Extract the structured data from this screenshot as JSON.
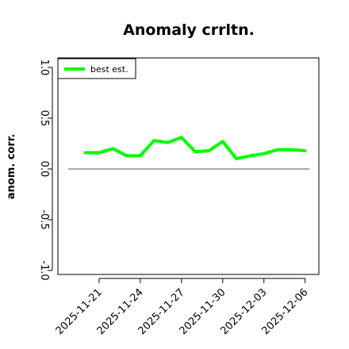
{
  "chart_data": {
    "type": "line",
    "title": "Anomaly crrltn.",
    "ylabel": "anom. corr.",
    "xlabel": "",
    "ylim": [
      -1.0,
      1.0
    ],
    "yticks": [
      -1.0,
      -0.5,
      0.0,
      0.5,
      1.0
    ],
    "ytick_labels": [
      "-1.0",
      "-0.5",
      "0.0",
      "0.5",
      "1.0"
    ],
    "x": [
      "2025-11-20",
      "2025-11-21",
      "2025-11-22",
      "2025-11-23",
      "2025-11-24",
      "2025-11-25",
      "2025-11-26",
      "2025-11-27",
      "2025-11-28",
      "2025-11-29",
      "2025-11-30",
      "2025-12-01",
      "2025-12-02",
      "2025-12-03",
      "2025-12-04",
      "2025-12-05",
      "2025-12-06"
    ],
    "xlim": [
      "2025-11-18",
      "2025-12-07"
    ],
    "xtick_labels": [
      "2025-11-21",
      "2025-11-24",
      "2025-11-27",
      "2025-11-30",
      "2025-12-03",
      "2025-12-06"
    ],
    "series": [
      {
        "name": "best est.",
        "color": "#00ff00",
        "values": [
          0.16,
          0.16,
          0.2,
          0.13,
          0.13,
          0.28,
          0.26,
          0.31,
          0.17,
          0.18,
          0.27,
          0.1,
          0.13,
          0.15,
          0.19,
          0.19,
          0.18
        ]
      }
    ],
    "reference_line": {
      "y": 0.0,
      "color": "#555555"
    },
    "legend": {
      "position": "top-left",
      "entries": [
        "best est."
      ]
    },
    "grid": false
  }
}
